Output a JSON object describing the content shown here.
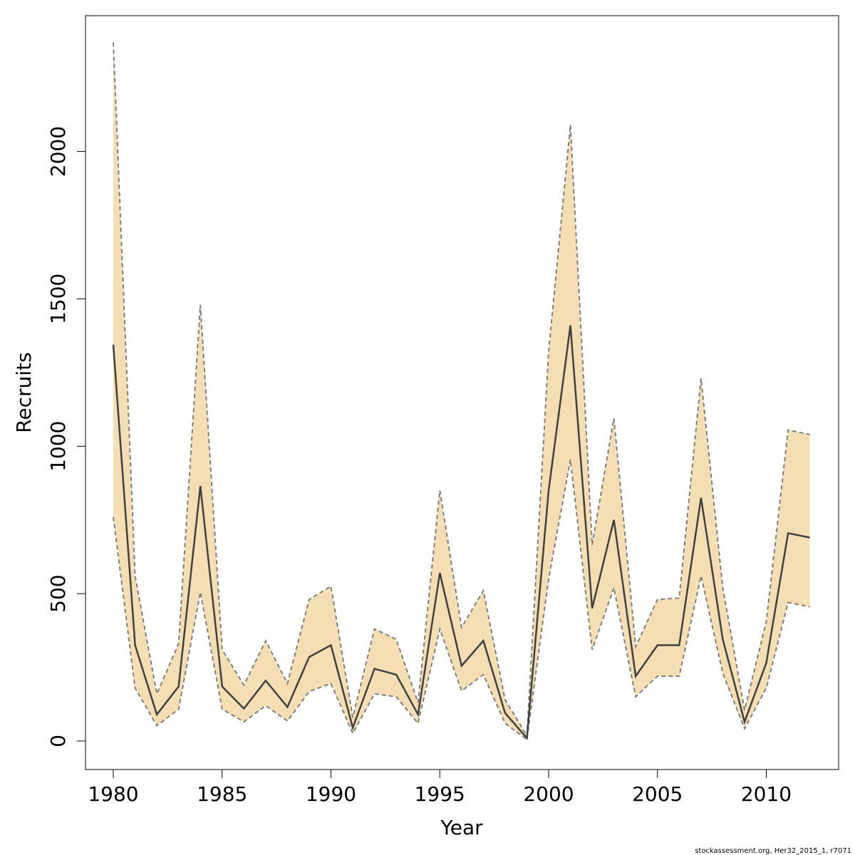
{
  "chart_data": {
    "type": "line",
    "title": "",
    "xlabel": "Year",
    "ylabel": "Recruits",
    "xlim": [
      1978.8,
      1213.0
    ],
    "ylim": [
      -100,
      2450
    ],
    "x_ticks": [
      1980,
      1985,
      1990,
      1995,
      2000,
      2005,
      2010
    ],
    "y_ticks": [
      0,
      500,
      1000,
      1500,
      2000
    ],
    "grid": false,
    "legend": "none",
    "x": [
      1980,
      1981,
      1982,
      1983,
      1984,
      1985,
      1986,
      1987,
      1988,
      1989,
      1990,
      1991,
      1992,
      1993,
      1994,
      1995,
      1996,
      1997,
      1998,
      1999,
      2000,
      2001,
      2002,
      2003,
      2004,
      2005,
      2006,
      2007,
      2008,
      2009,
      2010,
      2011,
      2012
    ],
    "series": [
      {
        "values": [
          1345,
          325,
          90,
          185,
          865,
          185,
          110,
          205,
          115,
          285,
          325,
          45,
          245,
          225,
          90,
          570,
          255,
          340,
          95,
          10,
          850,
          1410,
          450,
          750,
          220,
          325,
          325,
          825,
          345,
          65,
          265,
          705,
          690
        ]
      }
    ],
    "band_lower": [
      760,
      180,
      52,
      108,
      505,
      108,
      65,
      120,
      68,
      168,
      195,
      26,
      160,
      150,
      60,
      380,
      170,
      225,
      60,
      5,
      550,
      955,
      310,
      520,
      150,
      220,
      220,
      560,
      230,
      42,
      180,
      470,
      455
    ],
    "band_upper": [
      2370,
      560,
      160,
      330,
      1480,
      310,
      190,
      340,
      195,
      480,
      525,
      80,
      380,
      345,
      130,
      850,
      385,
      510,
      140,
      18,
      1320,
      2090,
      665,
      1095,
      320,
      480,
      485,
      1230,
      520,
      105,
      405,
      1055,
      1040
    ],
    "colors": {
      "band_fill": "#f5deb3",
      "band_edge": "#808080",
      "line": "#404040",
      "frame": "#000000"
    },
    "footnote": "stockassessment.org, Her32_2015_1, r7071"
  }
}
